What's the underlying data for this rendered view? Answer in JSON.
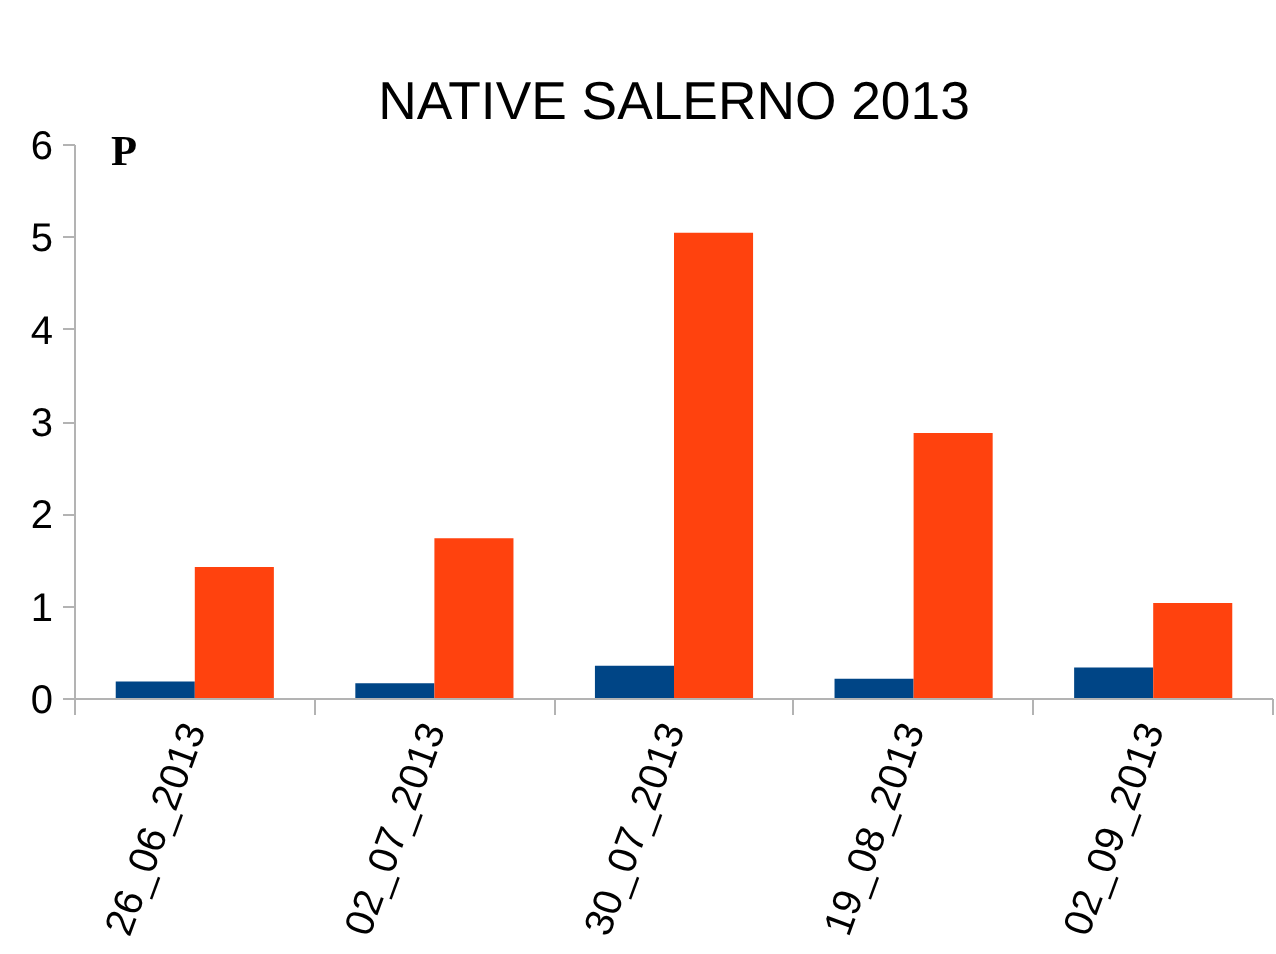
{
  "chart_data": {
    "type": "bar",
    "title": "NATIVE SALERNO 2013",
    "annotations": [
      "P"
    ],
    "categories": [
      "26_06_2013",
      "02_07_2013",
      "30_07_2013",
      "19_08_2013",
      "02_09_2013"
    ],
    "series": [
      {
        "color": "#004586",
        "values": [
          0.19,
          0.17,
          0.36,
          0.22,
          0.34
        ]
      },
      {
        "color": "#ff420e",
        "values": [
          1.43,
          1.74,
          5.05,
          2.88,
          1.04
        ]
      }
    ],
    "ylim": [
      0,
      6
    ],
    "yticks": [
      0,
      1,
      2,
      3,
      4,
      5,
      6
    ],
    "grid": false
  }
}
